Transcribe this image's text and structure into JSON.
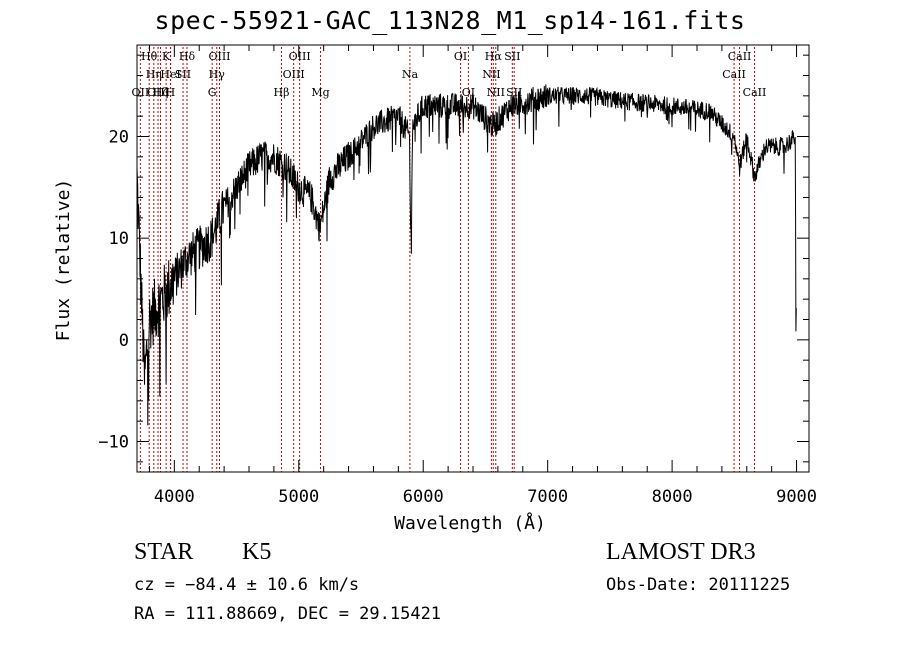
{
  "chart_data": {
    "type": "line",
    "title": "spec-55921-GAC_113N28_M1_sp14-161.fits",
    "xlabel": "Wavelength (Å)",
    "ylabel": "Flux (relative)",
    "xlim": [
      3700,
      9100
    ],
    "ylim": [
      -13,
      29
    ],
    "xticks": [
      4000,
      5000,
      6000,
      7000,
      8000,
      9000
    ],
    "xtick_labels": [
      "4000",
      "5000",
      "6000",
      "7000",
      "8000",
      "9000"
    ],
    "yticks": [
      -10,
      0,
      10,
      20
    ],
    "ytick_labels": [
      "−10",
      "0",
      "10",
      "20"
    ],
    "spectrum_anchors": [
      {
        "x": 3700,
        "y": 16
      },
      {
        "x": 3730,
        "y": 6
      },
      {
        "x": 3760,
        "y": -4
      },
      {
        "x": 3800,
        "y": 2
      },
      {
        "x": 3850,
        "y": 3
      },
      {
        "x": 3900,
        "y": 4
      },
      {
        "x": 3950,
        "y": 5
      },
      {
        "x": 4000,
        "y": 6
      },
      {
        "x": 4100,
        "y": 8
      },
      {
        "x": 4200,
        "y": 9
      },
      {
        "x": 4300,
        "y": 10
      },
      {
        "x": 4400,
        "y": 13
      },
      {
        "x": 4500,
        "y": 15
      },
      {
        "x": 4600,
        "y": 17
      },
      {
        "x": 4700,
        "y": 18
      },
      {
        "x": 4800,
        "y": 18
      },
      {
        "x": 4900,
        "y": 17
      },
      {
        "x": 5000,
        "y": 15
      },
      {
        "x": 5100,
        "y": 14
      },
      {
        "x": 5170,
        "y": 11
      },
      {
        "x": 5250,
        "y": 16
      },
      {
        "x": 5400,
        "y": 18
      },
      {
        "x": 5600,
        "y": 21
      },
      {
        "x": 5800,
        "y": 22
      },
      {
        "x": 5890,
        "y": 20
      },
      {
        "x": 5900,
        "y": 9
      },
      {
        "x": 5915,
        "y": 21
      },
      {
        "x": 6000,
        "y": 23
      },
      {
        "x": 6200,
        "y": 23
      },
      {
        "x": 6400,
        "y": 23
      },
      {
        "x": 6563,
        "y": 21
      },
      {
        "x": 6700,
        "y": 23
      },
      {
        "x": 7000,
        "y": 24
      },
      {
        "x": 7300,
        "y": 24
      },
      {
        "x": 7600,
        "y": 23.5
      },
      {
        "x": 8000,
        "y": 23
      },
      {
        "x": 8300,
        "y": 22.5
      },
      {
        "x": 8500,
        "y": 20
      },
      {
        "x": 8542,
        "y": 17
      },
      {
        "x": 8600,
        "y": 20
      },
      {
        "x": 8662,
        "y": 16
      },
      {
        "x": 8750,
        "y": 19
      },
      {
        "x": 8900,
        "y": 19
      },
      {
        "x": 8990,
        "y": 20
      },
      {
        "x": 8995,
        "y": 0
      },
      {
        "x": 9000,
        "y": 4
      }
    ],
    "spectral_lines": [
      {
        "label": "OII",
        "x": 3727,
        "row": 2
      },
      {
        "label": "Hθ",
        "x": 3798,
        "row": 0
      },
      {
        "label": "Hη",
        "x": 3835,
        "row": 1
      },
      {
        "label": "OIII",
        "x": 3869,
        "row": 2
      },
      {
        "label": "Hζ",
        "x": 3889,
        "row": 2
      },
      {
        "label": "K",
        "x": 3934,
        "row": 0
      },
      {
        "label": "HeI",
        "x": 3970,
        "row": 1
      },
      {
        "label": "H",
        "x": 3969,
        "row": 2
      },
      {
        "label": "SII",
        "x": 4070,
        "row": 1
      },
      {
        "label": "Hδ",
        "x": 4102,
        "row": 0
      },
      {
        "label": "G",
        "x": 4304,
        "row": 2
      },
      {
        "label": "Hγ",
        "x": 4341,
        "row": 1
      },
      {
        "label": "OIII",
        "x": 4363,
        "row": 0
      },
      {
        "label": "Hβ",
        "x": 4861,
        "row": 2
      },
      {
        "label": "OIII",
        "x": 4959,
        "row": 1
      },
      {
        "label": "OIII",
        "x": 5007,
        "row": 0
      },
      {
        "label": "Mg",
        "x": 5175,
        "row": 2
      },
      {
        "label": "Na",
        "x": 5893,
        "row": 1
      },
      {
        "label": "OI",
        "x": 6300,
        "row": 0
      },
      {
        "label": "OI",
        "x": 6363,
        "row": 2
      },
      {
        "label": "NII",
        "x": 6548,
        "row": 1
      },
      {
        "label": "Hα",
        "x": 6563,
        "row": 0
      },
      {
        "label": "NII",
        "x": 6583,
        "row": 2
      },
      {
        "label": "SII",
        "x": 6716,
        "row": 0
      },
      {
        "label": "SII",
        "x": 6731,
        "row": 2
      },
      {
        "label": "CaII",
        "x": 8498,
        "row": 1
      },
      {
        "label": "CaII",
        "x": 8542,
        "row": 0
      },
      {
        "label": "CaII",
        "x": 8662,
        "row": 2
      }
    ]
  },
  "info": {
    "object_class": "STAR",
    "subclass": "K5",
    "survey": "LAMOST DR3",
    "redshift": "cz = −84.4 ± 10.6 km/s",
    "obs_date": "Obs-Date: 20111225",
    "coords": "RA = 111.88669, DEC =  29.15421"
  }
}
